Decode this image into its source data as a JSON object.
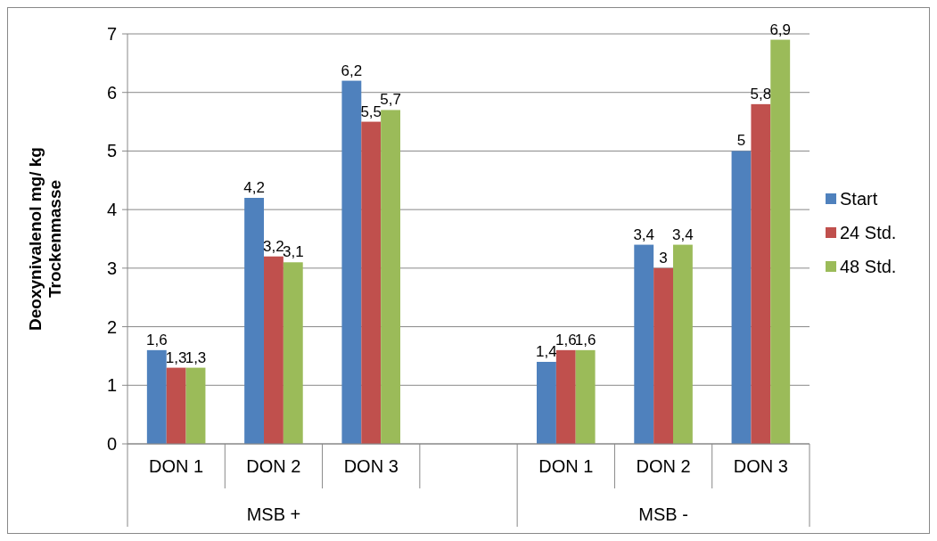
{
  "chart_data": {
    "type": "bar",
    "ylabel": "Deoxynivalenol mg/ kg Trockenmasse",
    "categories": [
      "DON 1",
      "DON 2",
      "DON 3",
      null,
      "DON 1",
      "DON 2",
      "DON 3"
    ],
    "series": [
      {
        "name": "Start",
        "color": "#4f81bd",
        "values": [
          1.6,
          4.2,
          6.2,
          null,
          1.4,
          3.4,
          5
        ],
        "value_labels": [
          "1,6",
          "4,2",
          "6,2",
          null,
          "1,4",
          "3,4",
          "5"
        ]
      },
      {
        "name": "24 Std.",
        "color": "#c0504d",
        "values": [
          1.3,
          3.2,
          5.5,
          null,
          1.6,
          3,
          5.8
        ],
        "value_labels": [
          "1,3",
          "3,2",
          "5,5",
          null,
          "1,6",
          "3",
          "5,8"
        ]
      },
      {
        "name": "48 Std.",
        "color": "#9bbb59",
        "values": [
          1.3,
          3.1,
          5.7,
          null,
          1.6,
          3.4,
          6.9
        ],
        "value_labels": [
          "1,3",
          "3,1",
          "5,7",
          null,
          "1,6",
          "3,4",
          "6,9"
        ]
      }
    ],
    "ylim": [
      0,
      7
    ],
    "yticks": [
      0,
      1,
      2,
      3,
      4,
      5,
      6,
      7
    ],
    "grid": "y",
    "legend": "right",
    "annotations": [
      "MSB +",
      "MSB -"
    ]
  }
}
